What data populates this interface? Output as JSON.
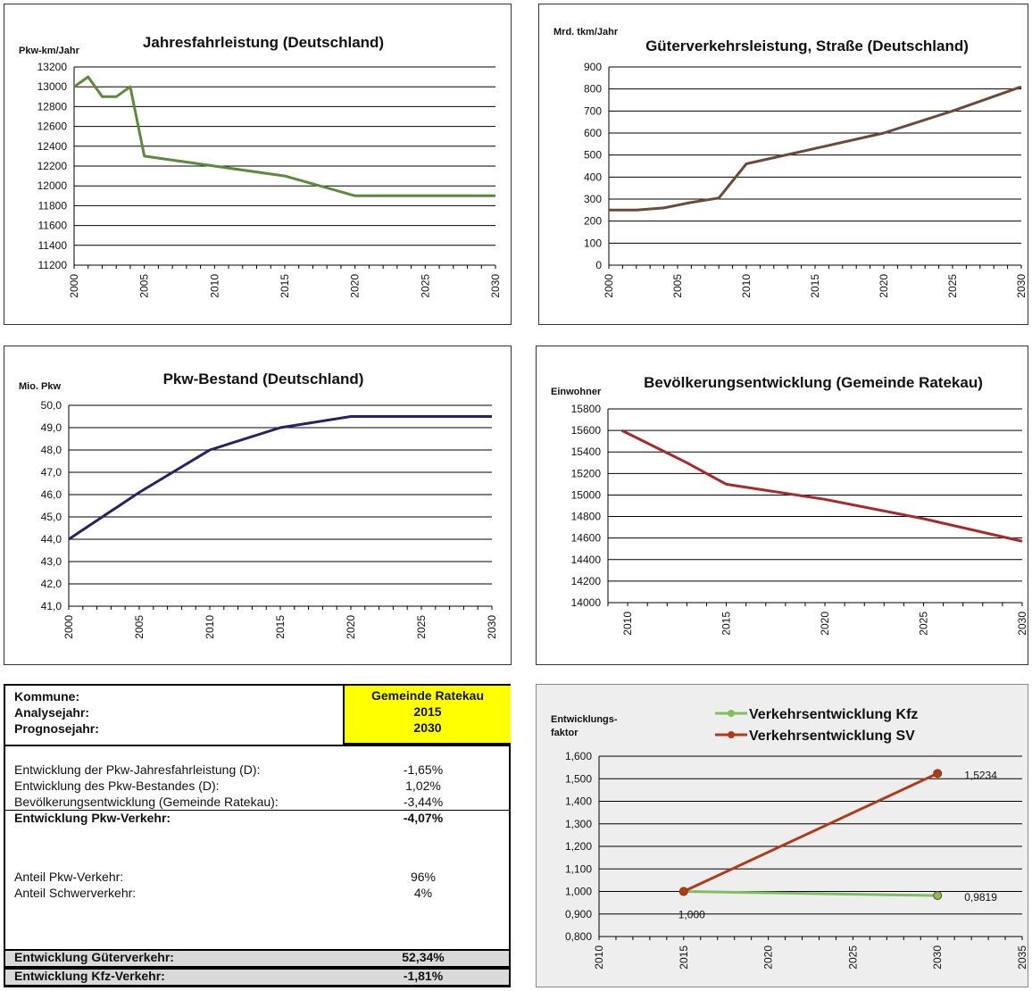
{
  "chart_data": [
    {
      "type": "line",
      "title": "Jahresfahrleistung (Deutschland)",
      "ylabel": "Pkw-km/Jahr",
      "ylim": [
        11200,
        13200
      ],
      "yticks": [
        "13200",
        "13000",
        "12800",
        "12600",
        "12400",
        "12200",
        "12000",
        "11800",
        "11600",
        "11400",
        "11200"
      ],
      "xticks": [
        "2000",
        "2005",
        "2010",
        "2015",
        "2020",
        "2025",
        "2030"
      ],
      "xlim": [
        2000,
        2030
      ],
      "grid": true,
      "color": "#5b8a3c",
      "series": [
        {
          "x": [
            2000,
            2001,
            2002,
            2003,
            2004,
            2005,
            2010,
            2015,
            2020,
            2025,
            2030
          ],
          "y": [
            13000,
            13100,
            12900,
            12900,
            13000,
            12300,
            12200,
            12100,
            11900,
            11900,
            11900
          ]
        }
      ]
    },
    {
      "type": "line",
      "title": "Güterverkehrsleistung, Straße (Deutschland)",
      "ylabel": "Mrd. tkm/Jahr",
      "ylim": [
        0,
        900
      ],
      "yticks": [
        "900",
        "800",
        "700",
        "600",
        "500",
        "400",
        "300",
        "200",
        "100",
        "0"
      ],
      "xticks": [
        "2000",
        "2005",
        "2010",
        "2015",
        "2020",
        "2025",
        "2030"
      ],
      "xlim": [
        2000,
        2030
      ],
      "grid": true,
      "color": "#6b4a3a",
      "series": [
        {
          "x": [
            2000,
            2002,
            2004,
            2006,
            2008,
            2010,
            2015,
            2020,
            2025,
            2030
          ],
          "y": [
            250,
            250,
            260,
            285,
            305,
            460,
            530,
            600,
            700,
            810
          ]
        }
      ]
    },
    {
      "type": "line",
      "title": "Pkw-Bestand (Deutschland)",
      "ylabel": "Mio. Pkw",
      "ylim": [
        41,
        50
      ],
      "yticks": [
        "50,0",
        "49,0",
        "48,0",
        "47,0",
        "46,0",
        "45,0",
        "44,0",
        "43,0",
        "42,0",
        "41,0"
      ],
      "xticks": [
        "2000",
        "2005",
        "2010",
        "2015",
        "2020",
        "2025",
        "2030"
      ],
      "xlim": [
        2000,
        2030
      ],
      "grid": true,
      "color": "#2b1f66",
      "series": [
        {
          "x": [
            2000,
            2005,
            2010,
            2015,
            2020,
            2025,
            2030
          ],
          "y": [
            44.0,
            46.1,
            48.0,
            49.0,
            49.5,
            49.5,
            49.5
          ]
        }
      ]
    },
    {
      "type": "line",
      "title": "Bevölkerungsentwicklung (Gemeinde Ratekau)",
      "ylabel": "Einwohner",
      "ylim": [
        14000,
        15800
      ],
      "yticks": [
        "15800",
        "15600",
        "15400",
        "15200",
        "15000",
        "14800",
        "14600",
        "14400",
        "14200",
        "14000"
      ],
      "xticks": [
        "2010",
        "2015",
        "2020",
        "2025",
        "2030"
      ],
      "xlim": [
        2009,
        2030
      ],
      "grid": true,
      "color": "#a52a2a",
      "series": [
        {
          "x": [
            2009.7,
            2013,
            2015,
            2020,
            2025,
            2030
          ],
          "y": [
            15600,
            15300,
            15100,
            14960,
            14780,
            14570
          ]
        }
      ]
    },
    {
      "type": "line",
      "ylabel": "Entwicklungs-\nfaktor",
      "ylim": [
        0.8,
        1.6
      ],
      "yticks": [
        "1,600",
        "1,500",
        "1,400",
        "1,300",
        "1,200",
        "1,100",
        "1,000",
        "0,900",
        "0,800"
      ],
      "xticks": [
        "2010",
        "2015",
        "2020",
        "2025",
        "2030",
        "2035"
      ],
      "xlim": [
        2010,
        2035
      ],
      "grid": true,
      "legend": "top",
      "series": [
        {
          "name": "Verkehrsentwicklung Kfz",
          "color": "#7fbf5f",
          "x": [
            2015,
            2030
          ],
          "y": [
            1.0,
            0.9819
          ],
          "labels": [
            "1,000",
            "0,9819"
          ]
        },
        {
          "name": "Verkehrsentwicklung SV",
          "color": "#b03a1a",
          "x": [
            2015,
            2030
          ],
          "y": [
            1.0,
            1.5234
          ],
          "labels": [
            "",
            "1,5234"
          ]
        }
      ]
    }
  ],
  "table": {
    "kommune_label": "Kommune:",
    "analysejahr_label": "Analysejahr:",
    "prognosejahr_label": "Prognosejahr:",
    "kommune_value": "Gemeinde Ratekau",
    "analysejahr_value": "2015",
    "prognosejahr_value": "2030",
    "rows": [
      {
        "label": "Entwicklung der Pkw-Jahresfahrleistung (D):",
        "value": "-1,65%"
      },
      {
        "label": "Entwicklung des Pkw-Bestandes (D):",
        "value": "1,02%"
      },
      {
        "label": "Bevölkerungsentwicklung (Gemeinde Ratekau):",
        "value": "-3,44%"
      },
      {
        "label": "Entwicklung Pkw-Verkehr:",
        "value": "-4,07%"
      },
      {
        "label": "Anteil Pkw-Verkehr:",
        "value": "96%"
      },
      {
        "label": "Anteil Schwerverkehr:",
        "value": "4%"
      },
      {
        "label": "Entwicklung Güterverkehr:",
        "value": "52,34%"
      },
      {
        "label": "Entwicklung Kfz-Verkehr:",
        "value": "-1,81%"
      }
    ]
  }
}
